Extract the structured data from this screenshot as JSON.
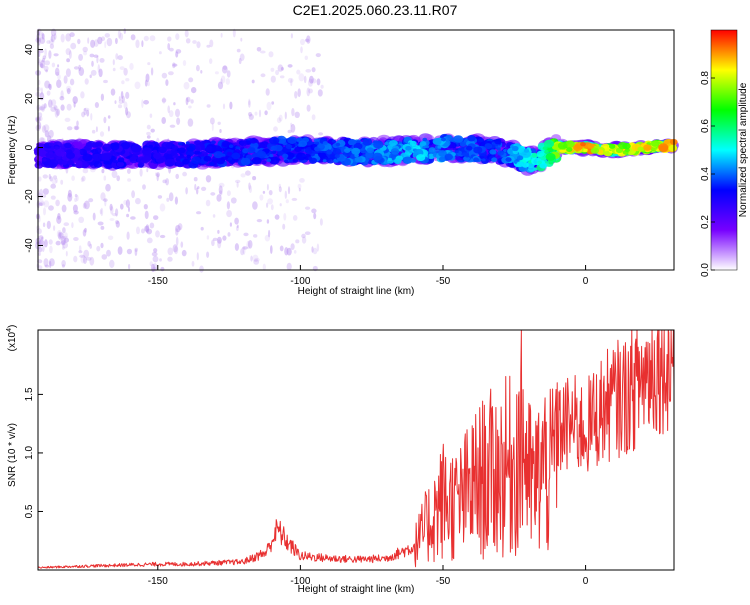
{
  "title": "C2E1.2025.060.23.11.R07",
  "chart_data": [
    {
      "type": "heatmap",
      "title": "C2E1.2025.060.23.11.R07",
      "xlabel": "Height of straight line (km)",
      "ylabel": "Frequency (Hz)",
      "xlim": [
        -192,
        31
      ],
      "ylim": [
        -50,
        48
      ],
      "xticks": [
        -150,
        -100,
        -50,
        0
      ],
      "yticks": [
        -40,
        -20,
        0,
        20,
        40
      ],
      "colorbar": {
        "label": "Normalized spectral amplitude",
        "range": [
          0,
          1
        ],
        "ticks": [
          0.0,
          0.2,
          0.4,
          0.6,
          0.8
        ],
        "colormap": [
          "#ffffff",
          "#7700ff",
          "#0000ff",
          "#00ffff",
          "#00ff00",
          "#ffff00",
          "#ff0000"
        ]
      },
      "ridge": {
        "x": [
          -192,
          -150,
          -100,
          -75,
          -60,
          -45,
          -30,
          -20,
          -15,
          -10,
          -5,
          0,
          5,
          10,
          20,
          31
        ],
        "frequency": [
          -3,
          -3,
          -1,
          -2,
          -1,
          0,
          -2,
          -5,
          -4,
          0,
          0,
          0,
          -1,
          -1,
          0,
          1
        ],
        "amplitude": [
          0.3,
          0.35,
          0.4,
          0.45,
          0.5,
          0.45,
          0.4,
          0.55,
          0.6,
          0.8,
          0.9,
          0.95,
          0.9,
          0.85,
          0.9,
          0.95
        ]
      }
    },
    {
      "type": "line",
      "xlabel": "Height of straight line (km)",
      "ylabel": "SNR (10 * v/v)",
      "yscale_label": "(x10",
      "yscale_exp": "4",
      "yscale_close": ")",
      "xlim": [
        -192,
        31
      ],
      "ylim": [
        0,
        2.05
      ],
      "xticks": [
        -150,
        -100,
        -50,
        0
      ],
      "yticks": [
        0.5,
        1.0,
        1.5
      ],
      "color": "#e83030",
      "series": [
        {
          "x": [
            -192,
            -180,
            -165,
            -150,
            -140,
            -130,
            -120,
            -112,
            -108,
            -105,
            -100,
            -90,
            -80,
            -70,
            -60,
            -55,
            -50,
            -45,
            -40,
            -35,
            -30,
            -25,
            -22,
            -20,
            -18,
            -15,
            -12,
            -10,
            -5,
            0,
            5,
            10,
            15,
            20,
            25,
            31
          ],
          "y": [
            0.02,
            0.03,
            0.04,
            0.05,
            0.05,
            0.06,
            0.07,
            0.15,
            0.35,
            0.25,
            0.12,
            0.1,
            0.09,
            0.1,
            0.2,
            0.4,
            0.6,
            0.55,
            0.7,
            0.8,
            0.85,
            0.9,
            1.2,
            0.8,
            0.7,
            0.9,
            0.8,
            1.2,
            1.25,
            1.2,
            1.35,
            1.45,
            1.5,
            1.65,
            1.75,
            1.85
          ]
        }
      ]
    }
  ]
}
